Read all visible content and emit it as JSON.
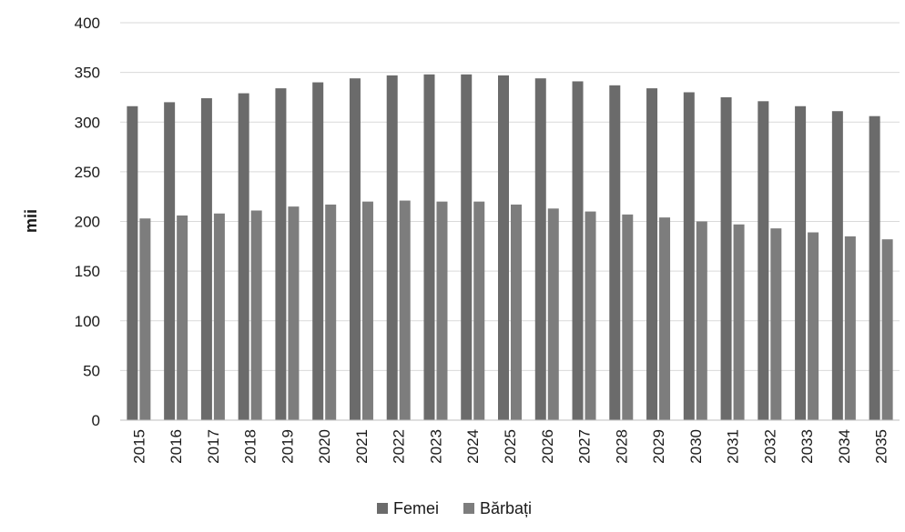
{
  "chart_data": {
    "type": "bar",
    "title": "",
    "xlabel": "",
    "ylabel": "mii",
    "ylim": [
      0,
      400
    ],
    "yticks": [
      0,
      50,
      100,
      150,
      200,
      250,
      300,
      350,
      400
    ],
    "grid": true,
    "legend_position": "bottom",
    "categories": [
      "2015",
      "2016",
      "2017",
      "2018",
      "2019",
      "2020",
      "2021",
      "2022",
      "2023",
      "2024",
      "2025",
      "2026",
      "2027",
      "2028",
      "2029",
      "2030",
      "2031",
      "2032",
      "2033",
      "2034",
      "2035"
    ],
    "series": [
      {
        "name": "Femei",
        "color": "#6b6b6b",
        "values": [
          316,
          320,
          324,
          329,
          334,
          340,
          344,
          347,
          348,
          348,
          347,
          344,
          341,
          337,
          334,
          330,
          325,
          321,
          316,
          311,
          306
        ]
      },
      {
        "name": "Bărbați",
        "color": "#7d7d7d",
        "values": [
          203,
          206,
          208,
          211,
          215,
          217,
          220,
          221,
          220,
          220,
          217,
          213,
          210,
          207,
          204,
          200,
          197,
          193,
          189,
          185,
          182
        ]
      }
    ]
  }
}
